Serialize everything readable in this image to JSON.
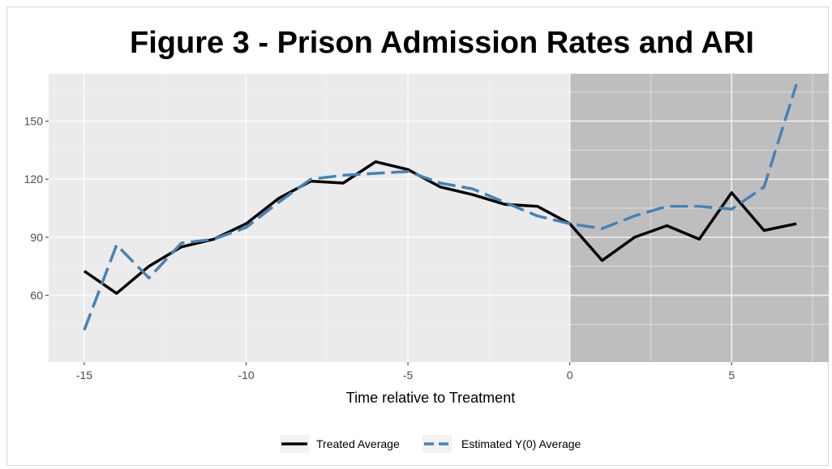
{
  "chart_data": {
    "type": "line",
    "title": "Figure 3 - Prison Admission Rates and ARI",
    "xlabel": "Time relative to Treatment",
    "ylabel": "",
    "xlim": [
      -16.1,
      8
    ],
    "ylim": [
      25.5,
      174.5
    ],
    "x_ticks": [
      -15,
      -10,
      -5,
      0,
      5
    ],
    "x_tick_labels": [
      "-15",
      "-10",
      "-5",
      "0",
      "5"
    ],
    "y_ticks": [
      60,
      90,
      120,
      150
    ],
    "y_tick_labels": [
      "60",
      "90",
      "120",
      "150"
    ],
    "treatment_shade_start": 0,
    "grid": true,
    "legend_position": "bottom",
    "x": [
      -15,
      -14,
      -13,
      -12,
      -11,
      -10,
      -9,
      -8,
      -7,
      -6,
      -5,
      -4,
      -3,
      -2,
      -1,
      0,
      1,
      2,
      3,
      4,
      5,
      6,
      7
    ],
    "series": [
      {
        "name": "Treated Average",
        "color": "#000000",
        "dash": "solid",
        "values": [
          72.5,
          61,
          75,
          85,
          89,
          97,
          110,
          119,
          118,
          129,
          125,
          116,
          112,
          107,
          106,
          97,
          78,
          90,
          96,
          89,
          113,
          93.5,
          97
        ]
      },
      {
        "name": "Estimated Y(0) Average",
        "color": "#4682b4",
        "dash": "dashed",
        "values": [
          42,
          86,
          69,
          87,
          89,
          95,
          108,
          120,
          122,
          123,
          124,
          118,
          115,
          108,
          101,
          97,
          94.5,
          101,
          106,
          106,
          104.5,
          116,
          169
        ]
      }
    ]
  },
  "colors": {
    "panel_bg": "#ebebeb",
    "shade": "#bebebe",
    "grid_major": "#ffffff",
    "grid_minor": "#f5f5f5"
  }
}
